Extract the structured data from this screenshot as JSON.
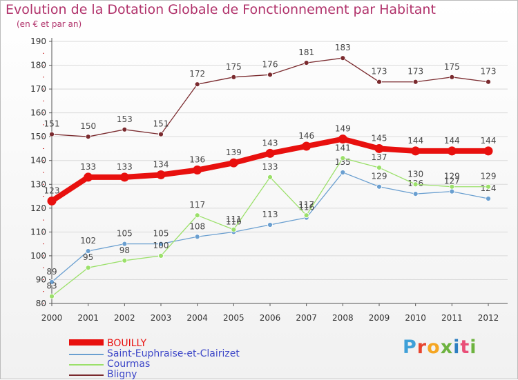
{
  "title": "Evolution de la Dotation Globale de Fonctionnement par Habitant",
  "subtitle": "(en € et par an)",
  "logo": "Proxiti",
  "colors": {
    "title": "#b0316a",
    "axis": "#555555",
    "grid": "#d9d9d9"
  },
  "chart_data": {
    "type": "line",
    "title": "Evolution de la Dotation Globale de Fonctionnement par Habitant",
    "subtitle": "(en € et par an)",
    "x": [
      2000,
      2001,
      2002,
      2003,
      2004,
      2005,
      2006,
      2007,
      2008,
      2009,
      2010,
      2011,
      2012
    ],
    "ylim": [
      80,
      190
    ],
    "yticks": [
      80,
      90,
      100,
      110,
      120,
      130,
      140,
      150,
      160,
      170,
      180,
      190
    ],
    "grid": "horizontal",
    "legend": "bottom-left",
    "series": [
      {
        "name": "BOUILLY",
        "color": "#e8100e",
        "legend_color": "#e8100e",
        "width": "thick",
        "values": [
          123,
          133,
          133,
          134,
          136,
          139,
          143,
          146,
          149,
          145,
          144,
          144,
          144
        ]
      },
      {
        "name": "Saint-Euphraise-et-Clairizet",
        "color": "#6a9fd0",
        "legend_color": "#3c46c8",
        "width": "thin",
        "values": [
          89,
          102,
          105,
          105,
          108,
          110,
          113,
          116,
          135,
          129,
          126,
          127,
          124
        ]
      },
      {
        "name": "Courmas",
        "color": "#9be06a",
        "legend_color": "#3c46c8",
        "width": "thin",
        "values": [
          83,
          95,
          98,
          100,
          117,
          111,
          133,
          117,
          141,
          137,
          130,
          129,
          129
        ]
      },
      {
        "name": "Bligny",
        "color": "#7a2a2e",
        "legend_color": "#3c46c8",
        "width": "thin",
        "values": [
          151,
          150,
          153,
          151,
          172,
          175,
          176,
          181,
          183,
          173,
          173,
          175,
          173
        ]
      }
    ]
  }
}
